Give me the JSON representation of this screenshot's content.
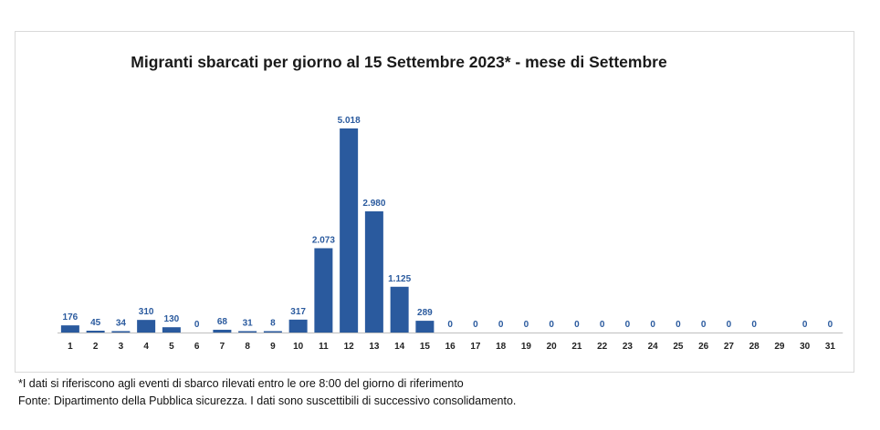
{
  "chart_data": {
    "type": "bar",
    "title": "Migranti sbarcati per giorno al 15 Settembre 2023* - mese di Settembre",
    "xlabel": "",
    "ylabel": "",
    "categories": [
      "1",
      "2",
      "3",
      "4",
      "5",
      "6",
      "7",
      "8",
      "9",
      "10",
      "11",
      "12",
      "13",
      "14",
      "15",
      "16",
      "17",
      "18",
      "19",
      "20",
      "21",
      "22",
      "23",
      "24",
      "25",
      "26",
      "27",
      "28",
      "29",
      "30",
      "31"
    ],
    "values": [
      176,
      45,
      34,
      310,
      130,
      0,
      68,
      31,
      8,
      317,
      2073,
      5018,
      2980,
      1125,
      289,
      0,
      0,
      0,
      0,
      0,
      0,
      0,
      0,
      0,
      0,
      0,
      0,
      0,
      null,
      0,
      0
    ],
    "data_labels": [
      "176",
      "45",
      "34",
      "310",
      "130",
      "0",
      "68",
      "31",
      "8",
      "317",
      "2.073",
      "5.018",
      "2.980",
      "1.125",
      "289",
      "0",
      "0",
      "0",
      "0",
      "0",
      "0",
      "0",
      "0",
      "0",
      "0",
      "0",
      "0",
      "0",
      "",
      "0",
      "0"
    ],
    "ylim": [
      0,
      5018
    ],
    "grid": false,
    "legend": "none",
    "bar_color": "#2a5a9e",
    "label_color": "#2a5a9e"
  },
  "footnotes": {
    "note": "*I dati si riferiscono agli eventi di sbarco rilevati entro le ore 8:00 del giorno di riferimento",
    "source": "Fonte: Dipartimento della Pubblica sicurezza. I dati sono suscettibili di successivo consolidamento."
  }
}
